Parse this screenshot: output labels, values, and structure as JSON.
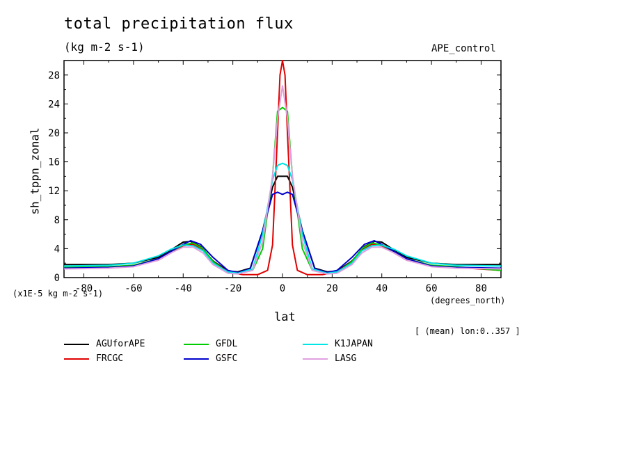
{
  "header": {
    "title": "total precipitation flux",
    "units": "(kg m-2 s-1)",
    "run": "APE_control",
    "note": "[ (mean) lon:0..357 ]"
  },
  "chart_data": {
    "type": "line",
    "title": "total precipitation flux",
    "ylabel": "sh_tppn_zonal",
    "xlabel": "lat",
    "x_units": "(degrees_north)",
    "y_units": "(x1E-5 kg m-2 s-1)",
    "xlim": [
      -88,
      88
    ],
    "ylim": [
      0,
      30
    ],
    "xticks": [
      -80,
      -60,
      -40,
      -20,
      0,
      20,
      40,
      60,
      80
    ],
    "yticks": [
      0,
      4,
      8,
      12,
      16,
      20,
      24,
      28
    ],
    "legend_placement": "below",
    "series": [
      {
        "name": "AGUforAPE",
        "color": "#000000",
        "x": [
          -88,
          -70,
          -60,
          -50,
          -45,
          -40,
          -37,
          -33,
          -28,
          -22,
          -18,
          -13,
          -8,
          -4,
          -2,
          0,
          2,
          4,
          8,
          13,
          18,
          22,
          28,
          33,
          37,
          40,
          45,
          50,
          60,
          70,
          88
        ],
        "y": [
          1.8,
          1.8,
          2.0,
          2.8,
          3.8,
          4.9,
          5.0,
          4.3,
          2.3,
          0.9,
          0.8,
          1.3,
          6.5,
          12.5,
          14.0,
          14.0,
          14.0,
          12.5,
          6.5,
          1.3,
          0.8,
          0.9,
          2.3,
          4.3,
          5.0,
          4.9,
          3.8,
          2.8,
          2.0,
          1.8,
          1.8
        ]
      },
      {
        "name": "FRCGC",
        "color": "#e00000",
        "x": [
          -88,
          -70,
          -60,
          -50,
          -45,
          -40,
          -36,
          -32,
          -28,
          -22,
          -16,
          -10,
          -6,
          -4,
          -2,
          -1,
          0,
          1,
          2,
          4,
          6,
          10,
          16,
          22,
          28,
          32,
          36,
          40,
          45,
          50,
          60,
          70,
          88
        ],
        "y": [
          1.4,
          1.4,
          1.6,
          2.4,
          3.4,
          4.4,
          4.6,
          3.8,
          2.2,
          0.8,
          0.4,
          0.4,
          1.0,
          4.5,
          20,
          28,
          30,
          28,
          20,
          4.5,
          1.0,
          0.4,
          0.4,
          0.8,
          2.2,
          3.8,
          4.6,
          4.4,
          3.4,
          2.4,
          1.6,
          1.4,
          1.0
        ]
      },
      {
        "name": "GFDL",
        "color": "#00cc00",
        "x": [
          -88,
          -70,
          -60,
          -50,
          -45,
          -40,
          -36,
          -32,
          -28,
          -22,
          -18,
          -12,
          -8,
          -4,
          -2,
          0,
          2,
          4,
          8,
          12,
          18,
          22,
          28,
          32,
          36,
          40,
          45,
          50,
          60,
          70,
          88
        ],
        "y": [
          1.4,
          1.5,
          1.7,
          2.6,
          3.6,
          4.5,
          4.8,
          4.0,
          2.2,
          0.7,
          0.6,
          1.0,
          4.0,
          14.0,
          23.0,
          23.5,
          23.0,
          14.0,
          4.0,
          1.0,
          0.6,
          0.7,
          2.2,
          4.0,
          4.8,
          4.5,
          3.6,
          2.6,
          1.7,
          1.5,
          1.0
        ]
      },
      {
        "name": "GSFC",
        "color": "#0000cc",
        "x": [
          -88,
          -70,
          -60,
          -50,
          -45,
          -40,
          -37,
          -33,
          -28,
          -22,
          -18,
          -13,
          -8,
          -4,
          -2,
          0,
          2,
          4,
          8,
          13,
          18,
          22,
          28,
          33,
          37,
          40,
          45,
          50,
          60,
          70,
          88
        ],
        "y": [
          1.3,
          1.4,
          1.6,
          2.6,
          3.6,
          4.6,
          5.1,
          4.6,
          2.8,
          1.0,
          0.7,
          1.2,
          6.5,
          11.5,
          11.8,
          11.5,
          11.8,
          11.5,
          6.5,
          1.2,
          0.7,
          1.0,
          2.8,
          4.6,
          5.1,
          4.6,
          3.6,
          2.6,
          1.6,
          1.4,
          1.3
        ]
      },
      {
        "name": "K1JAPAN",
        "color": "#00e5e5",
        "x": [
          -88,
          -70,
          -60,
          -50,
          -45,
          -40,
          -36,
          -32,
          -28,
          -22,
          -18,
          -12,
          -8,
          -4,
          -2,
          0,
          2,
          4,
          8,
          12,
          18,
          22,
          28,
          32,
          36,
          40,
          45,
          50,
          60,
          70,
          88
        ],
        "y": [
          1.6,
          1.7,
          2.0,
          3.0,
          3.9,
          4.5,
          4.4,
          3.7,
          2.0,
          0.8,
          0.6,
          1.2,
          6.0,
          13.5,
          15.5,
          15.8,
          15.5,
          13.5,
          6.0,
          1.2,
          0.6,
          0.8,
          2.0,
          3.7,
          4.4,
          4.5,
          3.9,
          3.0,
          2.0,
          1.7,
          1.6
        ]
      },
      {
        "name": "LASG",
        "color": "#e0a0e0",
        "x": [
          -88,
          -70,
          -60,
          -50,
          -45,
          -40,
          -36,
          -32,
          -28,
          -22,
          -18,
          -12,
          -8,
          -4,
          -2,
          0,
          2,
          4,
          8,
          12,
          18,
          22,
          28,
          32,
          36,
          40,
          45,
          50,
          60,
          70,
          88
        ],
        "y": [
          1.2,
          1.3,
          1.5,
          2.4,
          3.4,
          4.2,
          4.2,
          3.4,
          1.8,
          0.6,
          0.5,
          1.0,
          5.0,
          14.0,
          22.0,
          26.5,
          22.0,
          14.0,
          5.0,
          1.0,
          0.5,
          0.6,
          1.8,
          3.4,
          4.2,
          4.2,
          3.4,
          2.4,
          1.5,
          1.3,
          1.2
        ]
      }
    ]
  }
}
